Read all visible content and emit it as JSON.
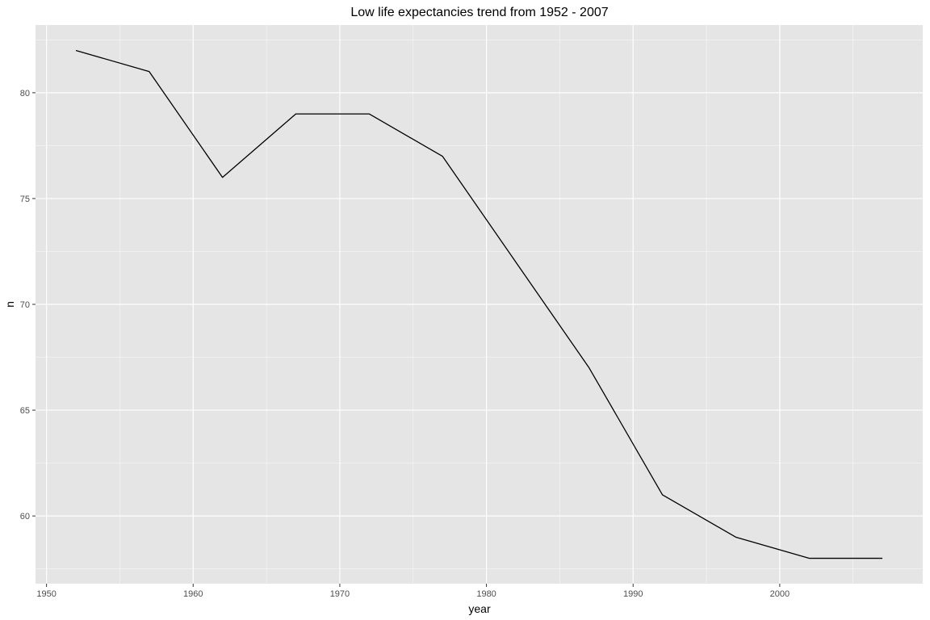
{
  "chart_data": {
    "type": "line",
    "title": "Low life expectancies trend from 1952 - 2007",
    "xlabel": "year",
    "ylabel": "n",
    "xlim": [
      1949.25,
      2009.75
    ],
    "ylim": [
      56.8,
      83.2
    ],
    "x_ticks": [
      1950,
      1960,
      1970,
      1980,
      1990,
      2000
    ],
    "x_tick_labels": [
      "1950",
      "1960",
      "1970",
      "1980",
      "1990",
      "2000"
    ],
    "y_ticks": [
      60,
      65,
      70,
      75,
      80
    ],
    "y_tick_labels": [
      "60",
      "65",
      "70",
      "75",
      "80"
    ],
    "x_minor_ticks": [
      1955,
      1965,
      1975,
      1985,
      1995,
      2005
    ],
    "y_minor_ticks": [
      57.5,
      62.5,
      67.5,
      72.5,
      77.5,
      82.5
    ],
    "grid": true,
    "series": [
      {
        "x": [
          1952,
          1957,
          1962,
          1967,
          1972,
          1977,
          1982,
          1987,
          1992,
          1997,
          2002,
          2007
        ],
        "values": [
          82,
          81,
          76,
          79,
          79,
          77,
          72,
          67,
          61,
          59,
          58,
          58
        ]
      }
    ]
  },
  "colors": {
    "panel_background": "#e5e5e5",
    "grid_major": "#ffffff",
    "line": "#000000",
    "tick_text": "#4d4d4d",
    "tick_mark": "#333333"
  }
}
